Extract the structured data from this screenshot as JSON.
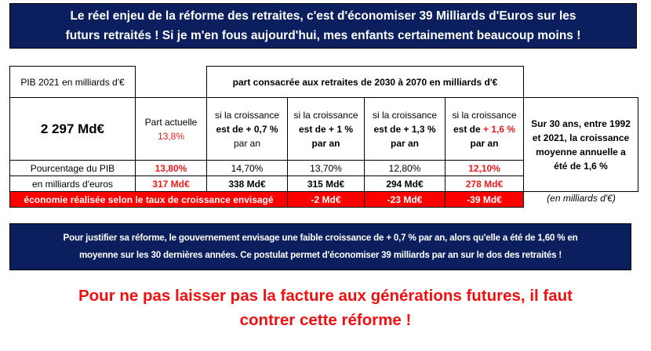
{
  "top_banner": {
    "line1": "Le réel enjeu de la réforme des retraites, c'est d'économiser 39 Milliards d'Euros sur les",
    "line2": "futurs retraités ! Si je m'en fous aujourd'hui, mes enfants certainement beaucoup moins !"
  },
  "table": {
    "pib_label": "PIB 2021 en milliards d'€",
    "header": "part consacrée aux retraites de 2030 à 2070 en milliards d'€",
    "pib_value": "2 297 Md€",
    "current": {
      "label": "Part actuelle",
      "value": "13,8%"
    },
    "scenarios": [
      {
        "l1": "si la croissance",
        "l2": "est de + 0,7 %",
        "l3": "par an",
        "pct": "14,70%",
        "md": "338 Md€",
        "eco": "-2 Md€"
      },
      {
        "l1": "si la croissance",
        "l2": "est de + 1 %",
        "l3": "par an",
        "pct": "13,70%",
        "md": "315 Md€",
        "eco": "-23 Md€"
      },
      {
        "l1": "si la croissance",
        "l2": "est de + 1,3 %",
        "l3": "par an",
        "pct": "12,80%",
        "md": "294 Md€",
        "eco": "-39 Md€"
      },
      {
        "l1": "si la croissance",
        "l2a": "est de ",
        "l2b": "+ 1,6 %",
        "l3": "par an",
        "pct": "12,10%",
        "md": "278 Md€"
      }
    ],
    "row_pct_label": "Pourcentage du PIB",
    "current_pct": "13,80%",
    "row_md_label": "en milliards d'euros",
    "current_md": "317 Md€",
    "eco_label": "économie réalisée selon le taux de croissance envisagé",
    "side_note": "Sur 30 ans, entre 1992 et 2021, la croissance moyenne annuelle a été de 1,6 %",
    "unit_note": "(en milliards d'€)"
  },
  "bottom_banner": {
    "line1": "Pour justifier sa réforme, le gouvernement envisage une faible croissance de + 0,7 % par an, alors qu'elle a été de 1,60 % en",
    "line2": "moyenne sur les 30 dernières années. Ce postulat permet d'économiser 39 milliards par an sur le dos des retraités !"
  },
  "cta": {
    "line1": "Pour ne pas laisser pas la facture aux générations futures, il faut",
    "line2": "contrer cette réforme !"
  }
}
